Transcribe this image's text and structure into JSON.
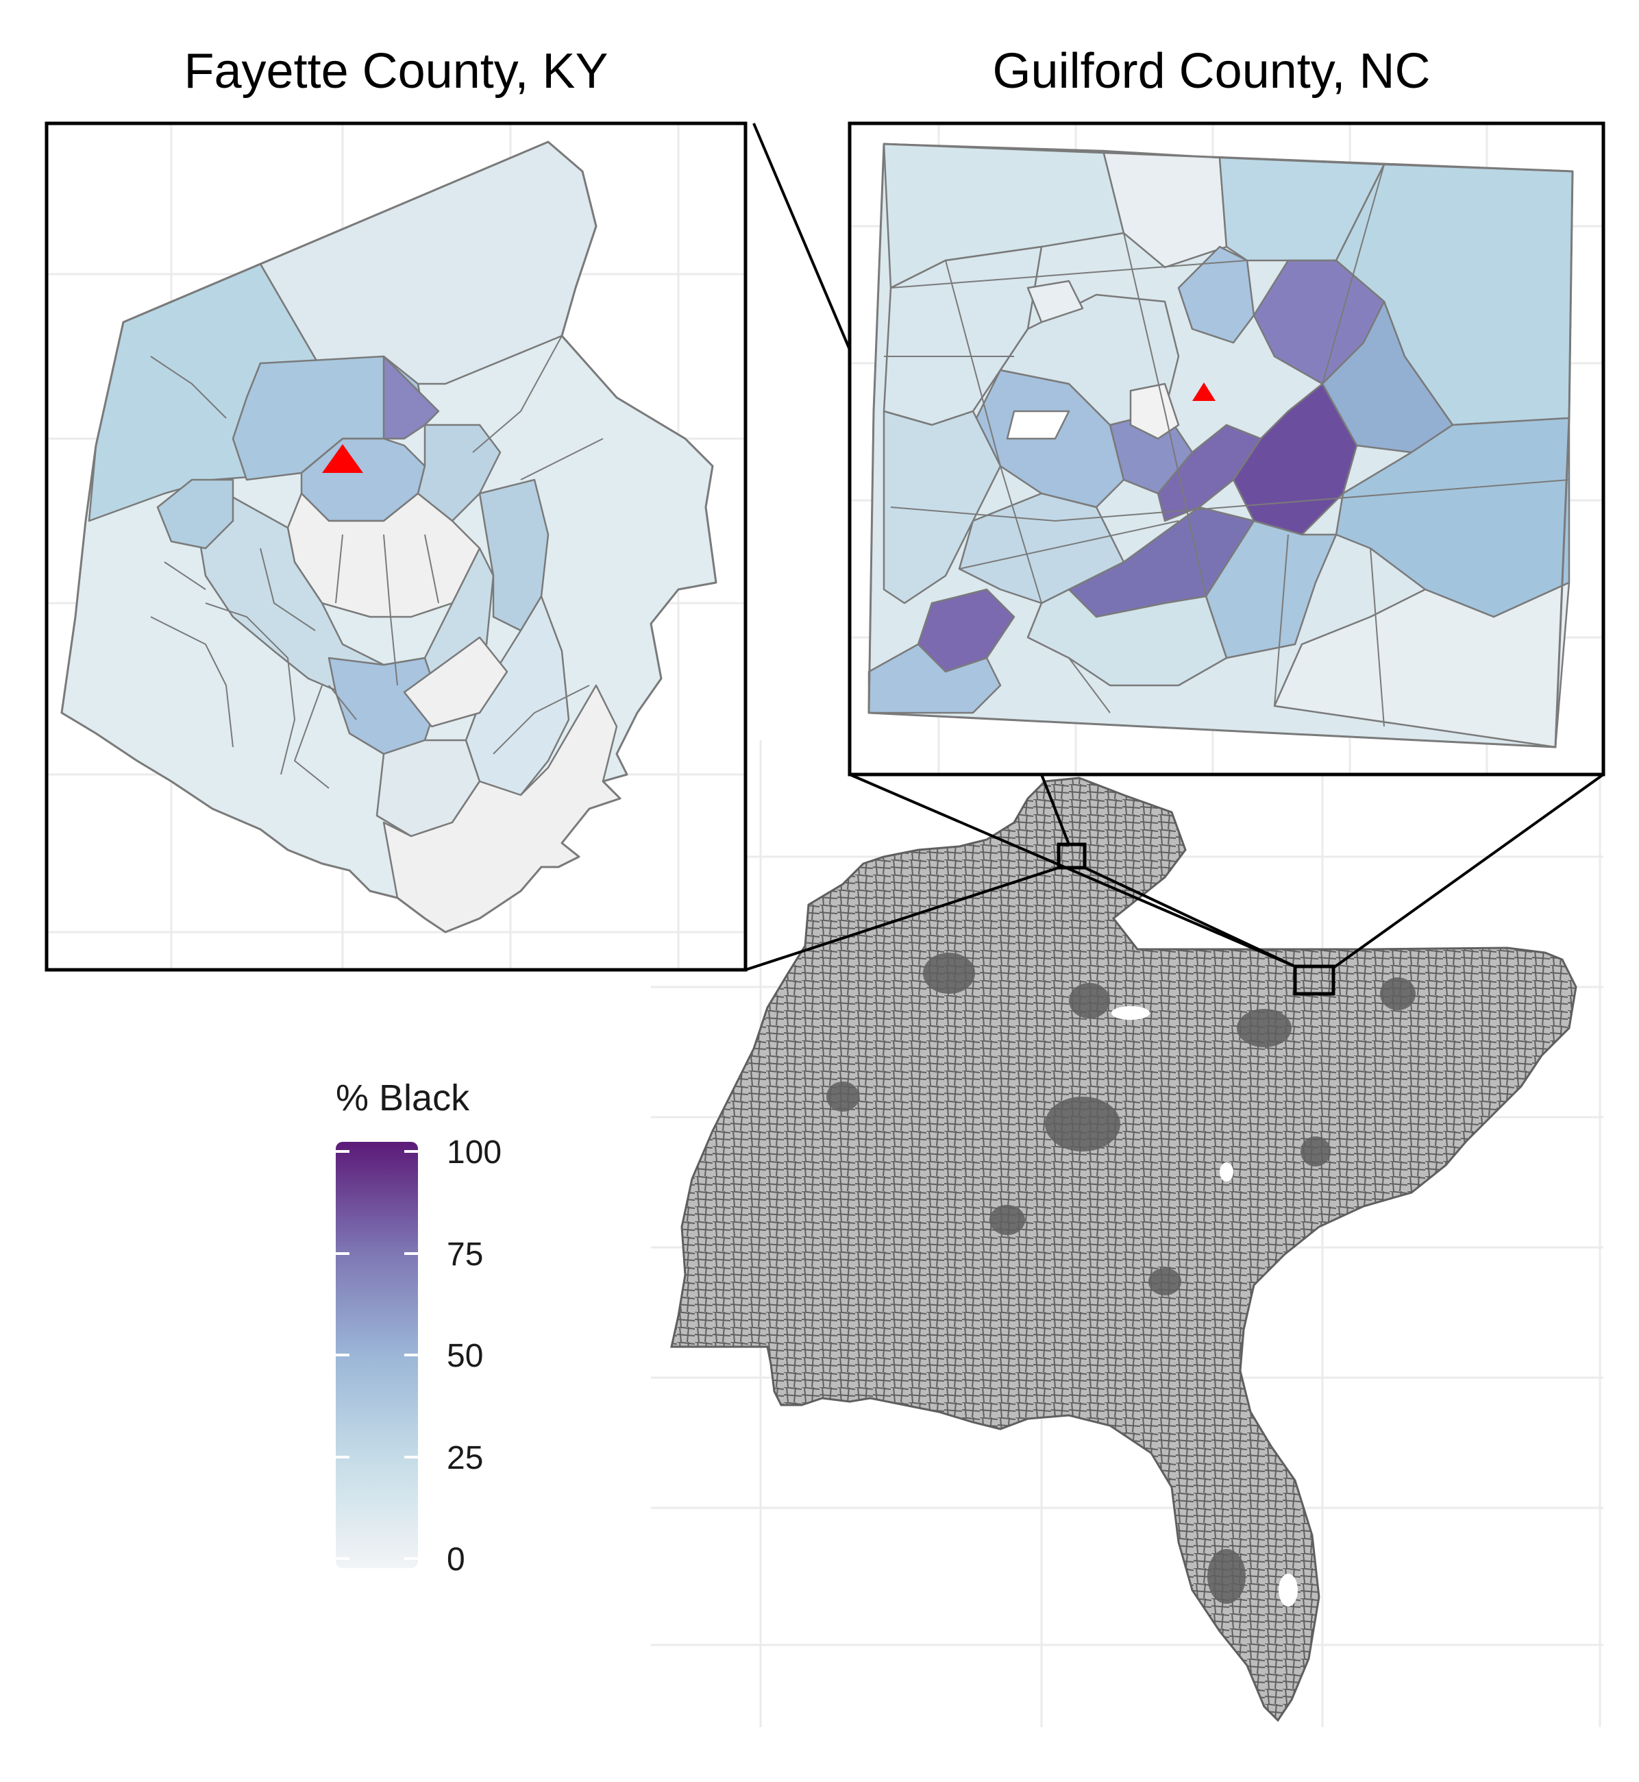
{
  "figure": {
    "panels": [
      {
        "id": "fayette",
        "title": "Fayette County, KY"
      },
      {
        "id": "guilford",
        "title": "Guilford County, NC"
      }
    ],
    "legend": {
      "title": "% Black",
      "ticks": [
        "100",
        "75",
        "50",
        "25",
        "0"
      ],
      "scale_min": 0,
      "scale_max": 100,
      "colors": {
        "low": "#f2f4f6",
        "q25": "#c6dde8",
        "q50": "#9bb6d7",
        "q75": "#7d74b2",
        "high": "#5c1a78"
      }
    },
    "marker": {
      "shape": "triangle",
      "color": "#ff0000"
    },
    "colors": {
      "overview_fill": "#bdbdbd",
      "overview_border": "#5f5f5f",
      "tract_border": "#7a7a7a",
      "box_border": "#000000"
    }
  }
}
